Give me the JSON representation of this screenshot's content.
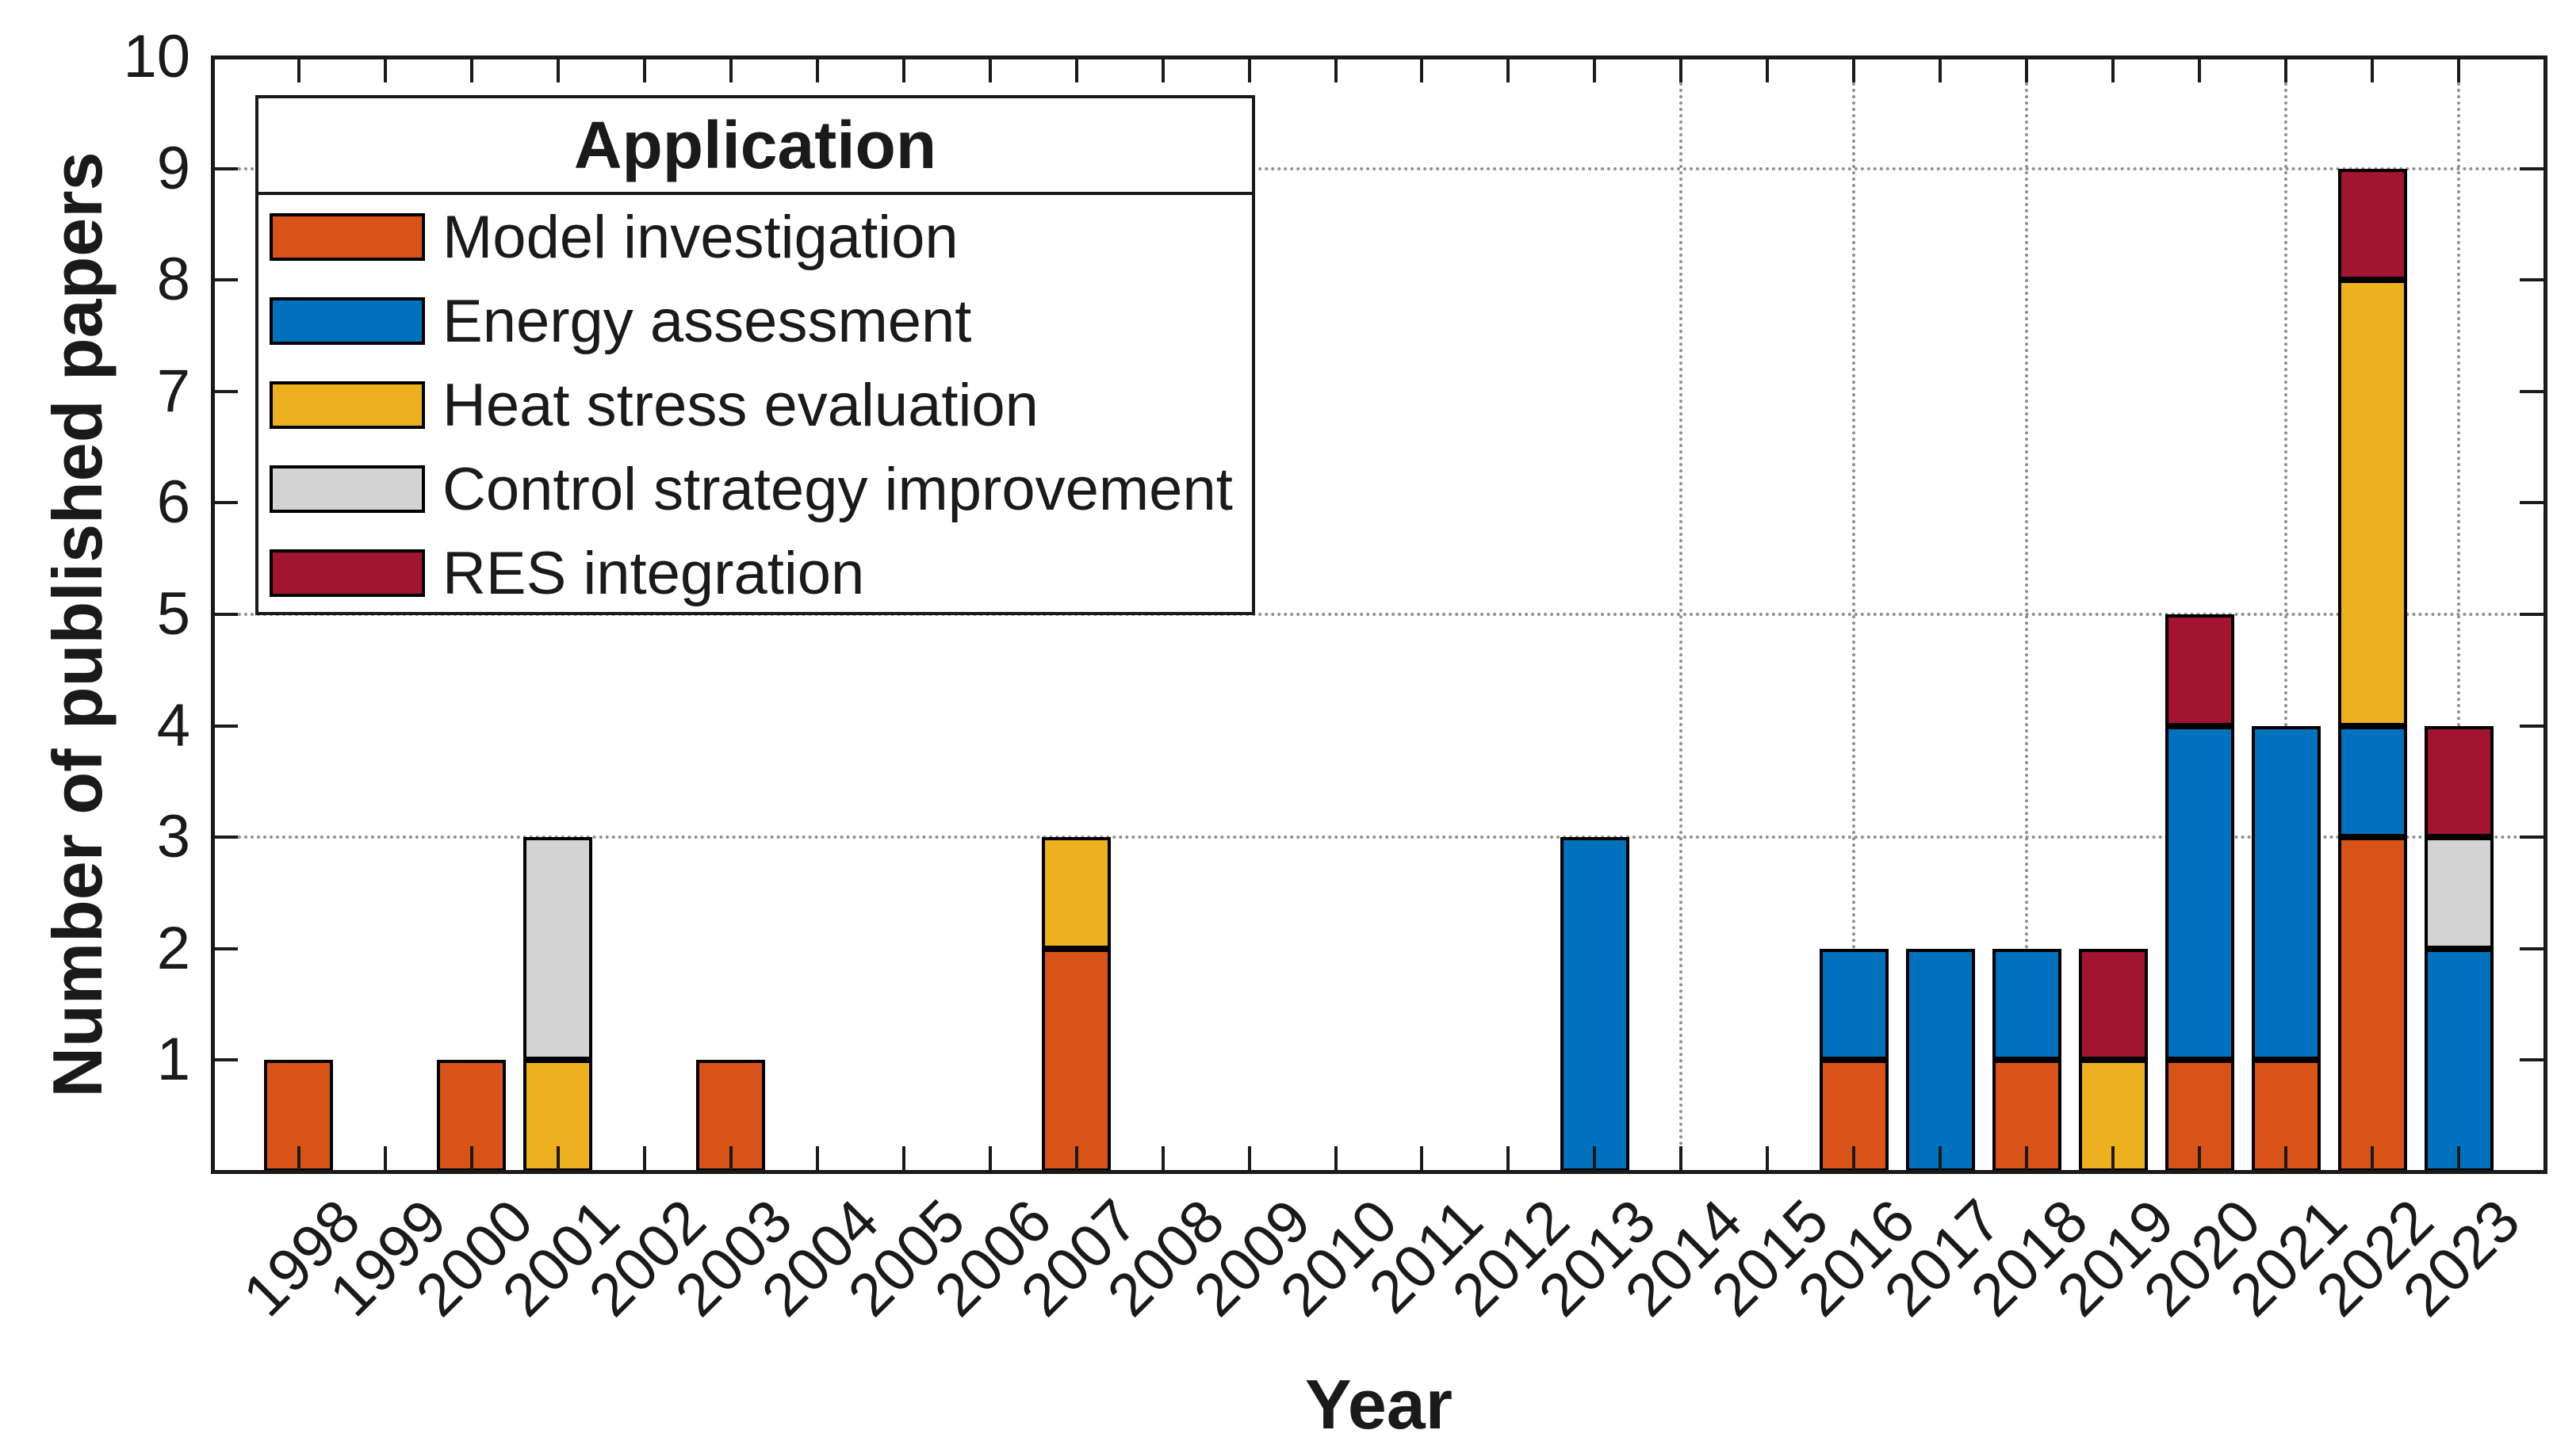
{
  "figure": {
    "background": "#ffffff",
    "axis_color": "#1a1a1a",
    "bar_edge_color": "#000000",
    "grid_color": "#8f8f8f"
  },
  "chart_data": {
    "type": "bar",
    "stacked": true,
    "title": "",
    "xlabel": "Year",
    "ylabel": "Number of published papers",
    "ylim": [
      0,
      10
    ],
    "yticks": [
      1,
      2,
      3,
      4,
      5,
      6,
      7,
      8,
      9,
      10
    ],
    "categories": [
      1998,
      1999,
      2000,
      2001,
      2002,
      2003,
      2004,
      2005,
      2006,
      2007,
      2008,
      2009,
      2010,
      2011,
      2012,
      2013,
      2014,
      2015,
      2016,
      2017,
      2018,
      2019,
      2020,
      2021,
      2022,
      2023
    ],
    "series": [
      {
        "name": "Model investigation",
        "color": "#D95319",
        "values": [
          1,
          0,
          1,
          0,
          0,
          1,
          0,
          0,
          0,
          2,
          0,
          0,
          0,
          0,
          0,
          0,
          0,
          0,
          1,
          0,
          1,
          0,
          1,
          1,
          3,
          0
        ]
      },
      {
        "name": "Energy assessment",
        "color": "#0072BD",
        "values": [
          0,
          0,
          0,
          0,
          0,
          0,
          0,
          0,
          0,
          0,
          0,
          0,
          0,
          0,
          0,
          3,
          0,
          0,
          1,
          2,
          1,
          0,
          3,
          3,
          1,
          2
        ]
      },
      {
        "name": "Heat stress evaluation",
        "color": "#EDB120",
        "values": [
          0,
          0,
          0,
          1,
          0,
          0,
          0,
          0,
          0,
          1,
          0,
          0,
          0,
          0,
          0,
          0,
          0,
          0,
          0,
          0,
          0,
          1,
          0,
          0,
          4,
          0
        ]
      },
      {
        "name": "Control strategy improvement",
        "color": "#D3D3D3",
        "values": [
          0,
          0,
          0,
          2,
          0,
          0,
          0,
          0,
          0,
          0,
          0,
          0,
          0,
          0,
          0,
          0,
          0,
          0,
          0,
          0,
          0,
          0,
          0,
          0,
          0,
          1
        ]
      },
      {
        "name": "RES integration",
        "color": "#A2142F",
        "values": [
          0,
          0,
          0,
          0,
          0,
          0,
          0,
          0,
          0,
          0,
          0,
          0,
          0,
          0,
          0,
          0,
          0,
          0,
          0,
          0,
          0,
          1,
          1,
          0,
          1,
          1
        ]
      }
    ],
    "grid": {
      "horizontal_lines_at_values": [
        3,
        5,
        9
      ],
      "vertical_lines_at_years": [
        2014,
        2016,
        2018,
        2021,
        2023
      ],
      "style": "dotted"
    },
    "legend": {
      "title": "Application",
      "position": "top-left"
    }
  }
}
